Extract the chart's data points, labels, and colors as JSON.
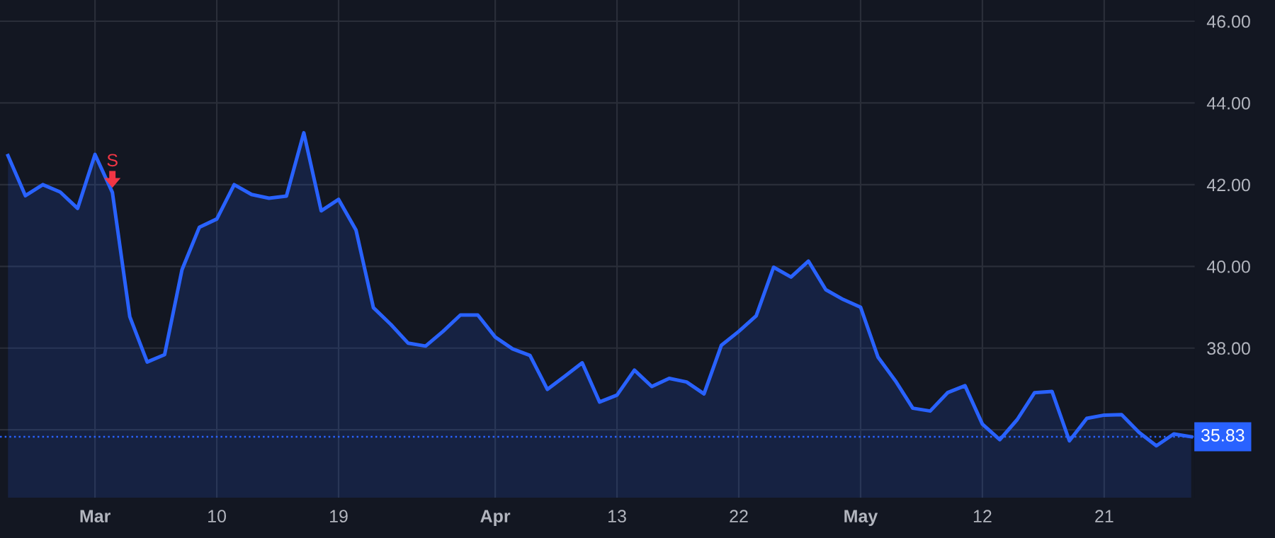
{
  "chart_data": {
    "type": "area",
    "categories": [
      null,
      null,
      null,
      null,
      null,
      "Mar",
      null,
      null,
      null,
      null,
      null,
      null,
      "10",
      null,
      null,
      null,
      null,
      null,
      null,
      "19",
      null,
      null,
      null,
      null,
      null,
      null,
      null,
      null,
      "Apr",
      null,
      null,
      null,
      null,
      null,
      null,
      "13",
      null,
      null,
      null,
      null,
      null,
      null,
      "22",
      null,
      null,
      null,
      null,
      null,
      null,
      "May",
      null,
      null,
      null,
      null,
      null,
      null,
      "12",
      null,
      null,
      null,
      null,
      null,
      null,
      "21",
      null,
      null,
      null,
      null,
      null
    ],
    "series": [
      {
        "color": "#2962ff",
        "values": [
          42.71,
          41.73,
          42.0,
          41.82,
          41.42,
          42.74,
          41.81,
          38.77,
          37.66,
          37.84,
          39.92,
          40.96,
          41.16,
          42.0,
          41.76,
          41.67,
          41.72,
          43.27,
          41.36,
          41.64,
          40.89,
          38.99,
          38.58,
          38.12,
          38.05,
          38.41,
          38.81,
          38.81,
          38.27,
          37.98,
          37.82,
          36.99,
          37.31,
          37.64,
          36.68,
          36.85,
          37.46,
          37.06,
          37.26,
          37.17,
          36.88,
          38.07,
          38.41,
          38.79,
          39.98,
          39.74,
          40.13,
          39.43,
          39.19,
          39.0,
          37.78,
          37.2,
          36.53,
          36.46,
          36.91,
          37.08,
          36.14,
          35.76,
          36.25,
          36.91,
          36.94,
          35.73,
          36.28,
          36.36,
          36.37,
          35.94,
          35.61,
          35.9,
          35.83
        ]
      }
    ],
    "ylim": [
      34.34,
      46.52
    ],
    "yticks": [
      {
        "value": 36,
        "label": null
      },
      {
        "value": 38,
        "label": "38.00"
      },
      {
        "value": 40,
        "label": "40.00"
      },
      {
        "value": 42,
        "label": "42.00"
      },
      {
        "value": 44,
        "label": "44.00"
      },
      {
        "value": 46,
        "label": "46.00"
      }
    ],
    "ref_lines": [
      {
        "axis": "y",
        "value": 35.83,
        "label": "35.83",
        "color": "#2962ff",
        "line_style": "dotted"
      }
    ],
    "annotations": [
      {
        "text": "S",
        "y": 41.81
      }
    ],
    "grid": true,
    "legend": false
  }
}
